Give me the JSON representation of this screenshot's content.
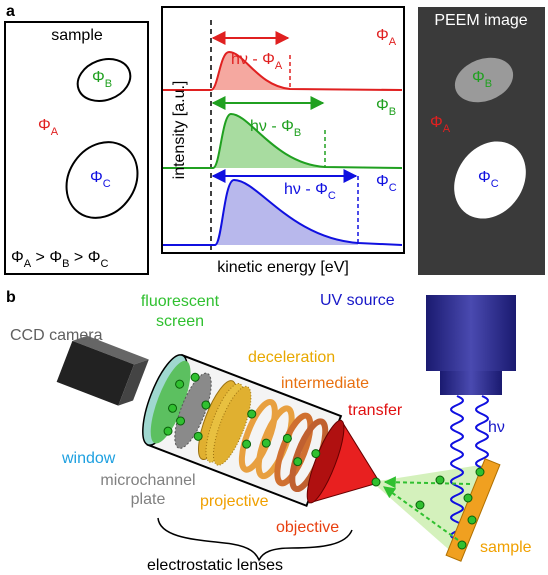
{
  "panel_a": {
    "label": "a",
    "sample": {
      "title": "sample",
      "phi_b": {
        "text": "Φ",
        "sub": "B"
      },
      "phi_a": {
        "text": "Φ",
        "sub": "A"
      },
      "phi_c": {
        "text": "Φ",
        "sub": "C"
      },
      "relation": [
        {
          "text": "Φ",
          "sub": "A"
        },
        {
          "text": " > Φ",
          "sub": "B"
        },
        {
          "text": " > Φ",
          "sub": "C"
        }
      ]
    },
    "spectra": {
      "y_label": "intensity [a.u.]",
      "x_label": "kinetic energy [eV]",
      "curves": [
        {
          "width": {
            "text": "hν - Φ",
            "sub": "A"
          },
          "phi": {
            "text": "Φ",
            "sub": "A"
          }
        },
        {
          "width": {
            "text": "hν - Φ",
            "sub": "B"
          },
          "phi": {
            "text": "Φ",
            "sub": "B"
          }
        },
        {
          "width": {
            "text": "hν - Φ",
            "sub": "C"
          },
          "phi": {
            "text": "Φ",
            "sub": "C"
          }
        }
      ]
    },
    "peem": {
      "title": "PEEM image",
      "phi_b": {
        "text": "Φ",
        "sub": "B"
      },
      "phi_a": {
        "text": "Φ",
        "sub": "A"
      },
      "phi_c": {
        "text": "Φ",
        "sub": "C"
      }
    }
  },
  "panel_b": {
    "label": "b",
    "ccd_camera": "CCD camera",
    "fluorescent_screen": [
      "fluorescent",
      "screen"
    ],
    "deceleration": "deceleration",
    "intermediate": "intermediate",
    "transfer": "transfer",
    "uv_source": "UV source",
    "photon": "hν",
    "window": "window",
    "microchannel_plate": [
      "microchannel",
      "plate"
    ],
    "projective": "projective",
    "objective": "objective",
    "sample": "sample",
    "electrostatic_lenses": "electrostatic lenses"
  }
}
